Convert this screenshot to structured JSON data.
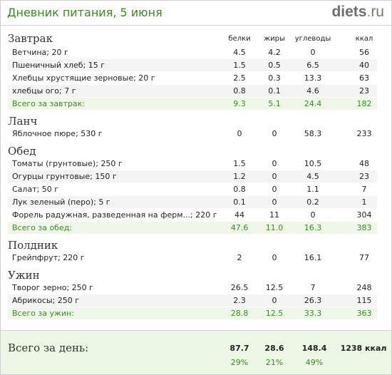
{
  "title": "Дневник питания, 5 июня",
  "logo": {
    "brand": "diets",
    "dot": ".",
    "tld": "ru"
  },
  "columns": {
    "proteins": "белки",
    "fats": "жиры",
    "carbs": "углеводы",
    "kcal": "ккал"
  },
  "breakfast": {
    "title": "Завтрак",
    "items": [
      {
        "name": "Ветчина; 20 г",
        "p": "4.5",
        "f": "4.2",
        "c": "0",
        "k": "56"
      },
      {
        "name": "Пшеничный хлеб; 15 г",
        "p": "1.5",
        "f": "0.5",
        "c": "6.5",
        "k": "40"
      },
      {
        "name": "Хлебцы хрустящие зерновые; 20 г",
        "p": "2.5",
        "f": "0.3",
        "c": "13.3",
        "k": "63"
      },
      {
        "name": "хлебцы ого; 7 г",
        "p": "0.8",
        "f": "0.1",
        "c": "4.6",
        "k": "23"
      }
    ],
    "total": {
      "name": "Всего за завтрак:",
      "p": "9.3",
      "f": "5.1",
      "c": "24.4",
      "k": "182"
    }
  },
  "lunch": {
    "title": "Ланч",
    "items": [
      {
        "name": "Яблочное пюре; 530 г",
        "p": "0",
        "f": "0",
        "c": "58.3",
        "k": "233"
      }
    ]
  },
  "dinner": {
    "title": "Обед",
    "items": [
      {
        "name": "Томаты (грунтовые); 250 г",
        "p": "1.5",
        "f": "0",
        "c": "10.5",
        "k": "48"
      },
      {
        "name": "Огурцы грунтовые; 150 г",
        "p": "1.2",
        "f": "0",
        "c": "4.5",
        "k": "23"
      },
      {
        "name": "Салат; 50 г",
        "p": "0.8",
        "f": "0",
        "c": "1.1",
        "k": "7"
      },
      {
        "name": "Лук зеленый (перо); 5 г",
        "p": "0.1",
        "f": "0",
        "c": "0.2",
        "k": "1"
      },
      {
        "name": "Форель радужная, разведенная на ферм...; 220 г",
        "p": "44",
        "f": "11",
        "c": "0",
        "k": "304"
      }
    ],
    "total": {
      "name": "Всего за обед:",
      "p": "47.6",
      "f": "11.0",
      "c": "16.3",
      "k": "383"
    }
  },
  "snack": {
    "title": "Полдник",
    "items": [
      {
        "name": "Грейпфрут; 220 г",
        "p": "2",
        "f": "0",
        "c": "16.1",
        "k": "77"
      }
    ]
  },
  "supper": {
    "title": "Ужин",
    "items": [
      {
        "name": "Творог зерно; 250 г",
        "p": "26.5",
        "f": "12.5",
        "c": "7",
        "k": "248"
      },
      {
        "name": "Абрикосы; 250 г",
        "p": "2.3",
        "f": "0",
        "c": "26.3",
        "k": "115"
      }
    ],
    "total": {
      "name": "Всего за ужин:",
      "p": "28.8",
      "f": "12.5",
      "c": "33.3",
      "k": "363"
    }
  },
  "day_total": {
    "label": "Всего за день:",
    "p": "87.7",
    "f": "28.6",
    "c": "148.4",
    "k": "1238 ккал",
    "p_pct": "29%",
    "f_pct": "21%",
    "c_pct": "49%"
  },
  "colors": {
    "accent_green": "#3a8a23",
    "total_bg": "#eff8e8",
    "logo_dot": "#e08a1e"
  }
}
